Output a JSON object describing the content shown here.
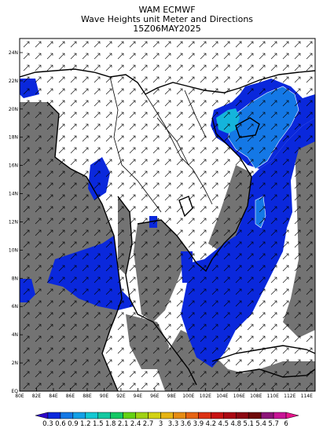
{
  "header": {
    "line1": "WAM ECMWF",
    "line2": "Wave Heights unit Meter and Directions",
    "line3": "15Z06MAY2025"
  },
  "map": {
    "lon_range": [
      80,
      115
    ],
    "lat_range": [
      0,
      25
    ],
    "x_ticks": [
      "80E",
      "82E",
      "84E",
      "86E",
      "88E",
      "90E",
      "92E",
      "94E",
      "96E",
      "98E",
      "100E",
      "102E",
      "104E",
      "106E",
      "108E",
      "110E",
      "112E",
      "114E"
    ],
    "y_ticks": [
      "EQ",
      "2N",
      "4N",
      "6N",
      "8N",
      "10N",
      "12N",
      "14N",
      "16N",
      "18N",
      "20N",
      "22N",
      "24N"
    ],
    "colors": {
      "land": "#ffffff",
      "no_data": "#737373",
      "wave_low": "#0a28dc",
      "wave_mid": "#1478e6",
      "wave_high": "#14b4dc",
      "arrow": "#000000",
      "coast": "#000000"
    },
    "arrow_direction": "northeast"
  },
  "colorbar": {
    "labels": [
      "0.3",
      "0.6",
      "0.9",
      "1.2",
      "1.5",
      "1.8",
      "2.1",
      "2.4",
      "2.7",
      "3",
      "3.3",
      "3.6",
      "3.9",
      "4.2",
      "4.5",
      "4.8",
      "5.1",
      "5.4",
      "5.7",
      "6"
    ],
    "colors": [
      "#2d05c8",
      "#0a28dc",
      "#1478e6",
      "#14a0e6",
      "#14c8d2",
      "#14c8a0",
      "#14c864",
      "#64d214",
      "#a0d214",
      "#d2d214",
      "#e6b414",
      "#e68c14",
      "#e66414",
      "#dc3214",
      "#c81414",
      "#aa0a14",
      "#8c0a14",
      "#6e0a0a",
      "#8c1478",
      "#c81496",
      "#e6148c"
    ]
  }
}
